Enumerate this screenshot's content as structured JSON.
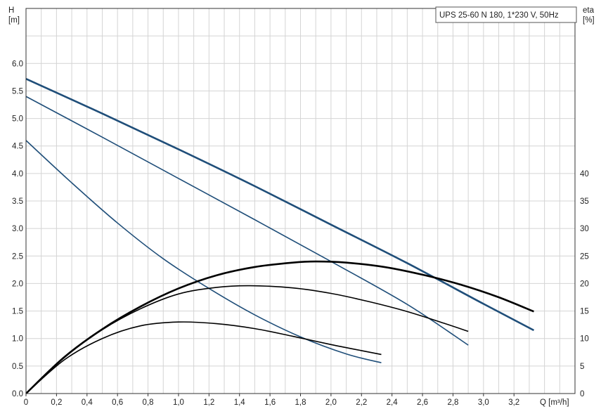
{
  "chart_data": {
    "type": "line",
    "title": "UPS 25-60 N 180, 1*230 V, 50Hz",
    "xlabel": "Q [m³/h]",
    "ylabel_top": "H",
    "ylabel_unit": "[m]",
    "y2label_top": "eta",
    "y2label_unit": "[%]",
    "xlim": [
      0,
      3.6
    ],
    "ylim": [
      0,
      7.0
    ],
    "y2lim": [
      0,
      70
    ],
    "x_ticks": [
      0,
      0.2,
      0.4,
      0.6,
      0.8,
      1.0,
      1.2,
      1.4,
      1.6,
      1.8,
      2.0,
      2.2,
      2.4,
      2.6,
      2.8,
      3.0,
      3.2
    ],
    "x_tick_labels": [
      "0",
      "0,2",
      "0,4",
      "0,6",
      "0,8",
      "1,0",
      "1,2",
      "1,4",
      "1,6",
      "1,8",
      "2,0",
      "2,2",
      "2,4",
      "2,6",
      "2,8",
      "3,0",
      "3,2"
    ],
    "y_ticks": [
      0,
      0.5,
      1.0,
      1.5,
      2.0,
      2.5,
      3.0,
      3.5,
      4.0,
      4.5,
      5.0,
      5.5,
      6.0
    ],
    "y_tick_labels": [
      "0.0",
      "0.5",
      "1.0",
      "1.5",
      "2.0",
      "2.5",
      "3.0",
      "3.5",
      "4.0",
      "4.5",
      "5.0",
      "5.5",
      "6.0"
    ],
    "y2_ticks": [
      0,
      5,
      10,
      15,
      20,
      25,
      30,
      35,
      40
    ],
    "y2_tick_labels": [
      "0",
      "5",
      "10",
      "15",
      "20",
      "25",
      "30",
      "35",
      "40"
    ],
    "grid": true,
    "legend_position": "top-right",
    "series": [
      {
        "axis": "H",
        "color": "#1f4e79",
        "width": 2.6,
        "x": [
          0,
          0.5,
          1.0,
          1.5,
          2.0,
          2.5,
          3.0,
          3.33
        ],
        "y": [
          5.72,
          5.09,
          4.44,
          3.77,
          3.07,
          2.37,
          1.63,
          1.15
        ]
      },
      {
        "axis": "H",
        "color": "#1f4e79",
        "width": 1.6,
        "x": [
          0,
          0.5,
          1.0,
          1.5,
          2.0,
          2.5,
          2.9
        ],
        "y": [
          5.4,
          4.66,
          3.91,
          3.16,
          2.4,
          1.62,
          0.88
        ]
      },
      {
        "axis": "H",
        "color": "#1f4e79",
        "width": 1.6,
        "x": [
          0,
          0.3,
          0.6,
          0.9,
          1.2,
          1.5,
          1.8,
          2.1,
          2.33
        ],
        "y": [
          4.6,
          3.83,
          3.1,
          2.45,
          1.91,
          1.43,
          1.03,
          0.72,
          0.56
        ]
      },
      {
        "axis": "eta",
        "color": "#000000",
        "width": 2.6,
        "x": [
          0,
          0.25,
          0.5,
          0.75,
          1.0,
          1.25,
          1.5,
          1.75,
          1.9,
          2.1,
          2.35,
          2.6,
          2.85,
          3.1,
          3.33
        ],
        "y": [
          0,
          6.6,
          11.7,
          15.8,
          19.1,
          21.5,
          23.0,
          23.8,
          24.0,
          23.8,
          23.0,
          21.6,
          19.8,
          17.5,
          14.9
        ]
      },
      {
        "axis": "eta",
        "color": "#000000",
        "width": 1.6,
        "x": [
          0,
          0.25,
          0.5,
          0.75,
          1.0,
          1.25,
          1.47,
          1.75,
          2.0,
          2.25,
          2.5,
          2.75,
          2.9
        ],
        "y": [
          0,
          6.5,
          11.6,
          15.4,
          18.1,
          19.3,
          19.6,
          19.2,
          18.2,
          16.7,
          14.9,
          12.7,
          11.3
        ]
      },
      {
        "axis": "eta",
        "color": "#000000",
        "width": 1.6,
        "x": [
          0,
          0.25,
          0.5,
          0.75,
          1.0,
          1.25,
          1.5,
          1.75,
          2.0,
          2.2,
          2.33
        ],
        "y": [
          0,
          6.1,
          10.0,
          12.3,
          13.0,
          12.7,
          11.8,
          10.4,
          8.9,
          7.8,
          7.1
        ]
      }
    ]
  }
}
